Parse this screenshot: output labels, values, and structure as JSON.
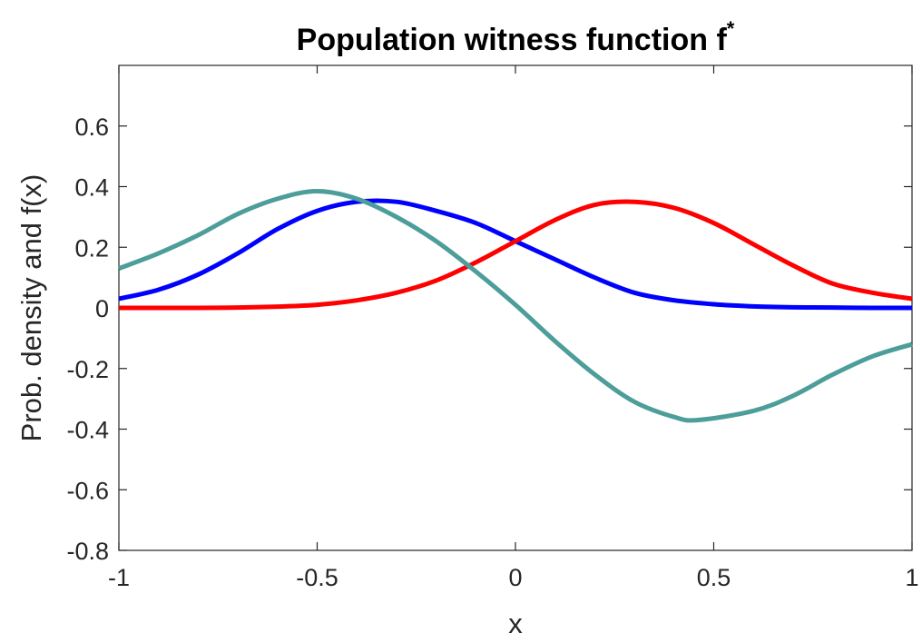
{
  "chart_data": {
    "type": "line",
    "title": "Population witness function f",
    "title_superscript": "*",
    "xlabel": "x",
    "ylabel": "Prob. density and f(x)",
    "xlim": [
      -1,
      1
    ],
    "ylim": [
      -0.8,
      0.8
    ],
    "xticks": [
      "-1",
      "-0.5",
      "0",
      "0.5",
      "1"
    ],
    "yticks": [
      "-0.8",
      "-0.6",
      "-0.4",
      "-0.2",
      "0",
      "0.2",
      "0.4",
      "0.6"
    ],
    "grid": false,
    "legend": "none",
    "series": [
      {
        "color": "#0000ff",
        "x": [
          -1,
          -0.9,
          -0.8,
          -0.7,
          -0.6,
          -0.5,
          -0.4,
          -0.3,
          -0.2,
          -0.1,
          0,
          0.1,
          0.2,
          0.3,
          0.4,
          0.5,
          0.6,
          0.7,
          0.8,
          0.9,
          1
        ],
        "y": [
          0.03,
          0.06,
          0.11,
          0.18,
          0.26,
          0.32,
          0.35,
          0.35,
          0.32,
          0.28,
          0.22,
          0.16,
          0.1,
          0.05,
          0.025,
          0.012,
          0.005,
          0.002,
          0.001,
          0.0,
          0.0
        ]
      },
      {
        "color": "#ff0000",
        "x": [
          -1,
          -0.9,
          -0.8,
          -0.7,
          -0.6,
          -0.5,
          -0.4,
          -0.3,
          -0.2,
          -0.1,
          0,
          0.1,
          0.2,
          0.3,
          0.4,
          0.5,
          0.6,
          0.7,
          0.8,
          0.9,
          1
        ],
        "y": [
          0.0,
          0.0,
          0.0,
          0.001,
          0.004,
          0.01,
          0.025,
          0.05,
          0.09,
          0.15,
          0.22,
          0.29,
          0.34,
          0.35,
          0.33,
          0.28,
          0.21,
          0.14,
          0.08,
          0.05,
          0.03
        ]
      },
      {
        "color": "#4d9e9a",
        "x": [
          -1,
          -0.9,
          -0.8,
          -0.7,
          -0.6,
          -0.5,
          -0.4,
          -0.3,
          -0.2,
          -0.1,
          0,
          0.1,
          0.2,
          0.3,
          0.4,
          0.46,
          0.6,
          0.7,
          0.8,
          0.9,
          1
        ],
        "y": [
          0.13,
          0.18,
          0.24,
          0.31,
          0.36,
          0.385,
          0.36,
          0.3,
          0.22,
          0.12,
          0.01,
          -0.11,
          -0.22,
          -0.31,
          -0.36,
          -0.37,
          -0.34,
          -0.29,
          -0.22,
          -0.16,
          -0.12
        ]
      }
    ]
  }
}
